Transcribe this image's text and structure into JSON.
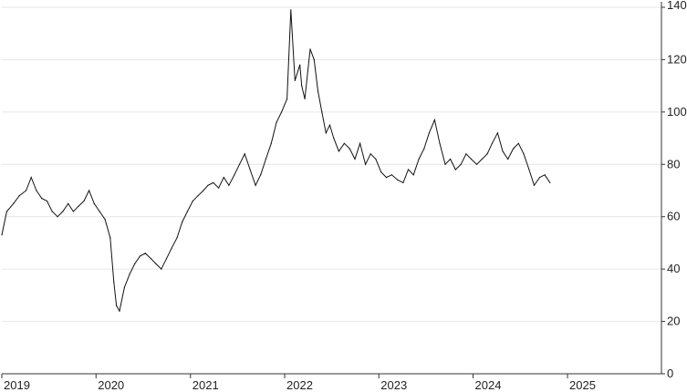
{
  "chart_data": {
    "type": "line",
    "title": "",
    "xlabel": "",
    "ylabel": "",
    "x_range": [
      "2019-01-01",
      "2025-12-31"
    ],
    "ylim": [
      0,
      140
    ],
    "y_ticks": [
      0,
      20,
      40,
      60,
      80,
      100,
      120,
      140
    ],
    "x_ticks": [
      {
        "date": "2019-01-01",
        "label": "2019"
      },
      {
        "date": "2020-01-01",
        "label": "2020"
      },
      {
        "date": "2021-01-01",
        "label": "2021"
      },
      {
        "date": "2022-01-01",
        "label": "2022"
      },
      {
        "date": "2023-01-01",
        "label": "2023"
      },
      {
        "date": "2024-01-01",
        "label": "2024"
      },
      {
        "date": "2025-01-01",
        "label": "2025"
      }
    ],
    "y_axis_position": "right",
    "grid": true,
    "legend": "none",
    "line_color": "#111111",
    "series": [
      {
        "x": [
          "2019-01-01",
          "2019-01-20",
          "2019-02-15",
          "2019-03-10",
          "2019-04-05",
          "2019-04-25",
          "2019-05-15",
          "2019-06-05",
          "2019-06-25",
          "2019-07-15",
          "2019-08-05",
          "2019-08-25",
          "2019-09-15",
          "2019-10-05",
          "2019-10-25",
          "2019-11-15",
          "2019-12-05",
          "2019-12-25",
          "2020-01-15",
          "2020-02-05",
          "2020-02-25",
          "2020-03-10",
          "2020-03-20",
          "2020-04-01",
          "2020-04-20",
          "2020-05-10",
          "2020-05-30",
          "2020-06-20",
          "2020-07-10",
          "2020-08-01",
          "2020-08-20",
          "2020-09-10",
          "2020-09-30",
          "2020-10-20",
          "2020-11-10",
          "2020-11-30",
          "2020-12-20",
          "2021-01-10",
          "2021-01-30",
          "2021-02-20",
          "2021-03-10",
          "2021-03-30",
          "2021-04-20",
          "2021-05-10",
          "2021-05-30",
          "2021-06-20",
          "2021-07-10",
          "2021-07-30",
          "2021-08-20",
          "2021-09-10",
          "2021-09-30",
          "2021-10-20",
          "2021-11-10",
          "2021-11-30",
          "2021-12-20",
          "2022-01-10",
          "2022-01-25",
          "2022-02-10",
          "2022-03-01",
          "2022-03-08",
          "2022-03-20",
          "2022-04-10",
          "2022-04-25",
          "2022-05-10",
          "2022-05-25",
          "2022-06-10",
          "2022-06-25",
          "2022-07-10",
          "2022-07-30",
          "2022-08-20",
          "2022-09-10",
          "2022-09-30",
          "2022-10-20",
          "2022-11-10",
          "2022-11-30",
          "2022-12-20",
          "2023-01-10",
          "2023-01-30",
          "2023-02-20",
          "2023-03-15",
          "2023-04-05",
          "2023-04-25",
          "2023-05-15",
          "2023-06-05",
          "2023-06-25",
          "2023-07-15",
          "2023-08-05",
          "2023-08-25",
          "2023-09-15",
          "2023-10-05",
          "2023-10-25",
          "2023-11-15",
          "2023-12-05",
          "2023-12-25",
          "2024-01-15",
          "2024-02-05",
          "2024-02-25",
          "2024-03-15",
          "2024-04-05",
          "2024-04-25",
          "2024-05-15",
          "2024-06-05",
          "2024-06-25",
          "2024-07-15",
          "2024-08-05",
          "2024-08-25",
          "2024-09-15",
          "2024-10-05",
          "2024-10-25"
        ],
        "y": [
          53,
          62,
          65,
          68,
          70,
          75,
          70,
          67,
          66,
          62,
          60,
          62,
          65,
          62,
          64,
          66,
          70,
          65,
          62,
          59,
          52,
          35,
          26,
          24,
          33,
          38,
          42,
          45,
          46,
          44,
          42,
          40,
          44,
          48,
          52,
          58,
          62,
          66,
          68,
          70,
          72,
          73,
          71,
          75,
          72,
          76,
          80,
          84,
          78,
          72,
          76,
          82,
          88,
          96,
          100,
          105,
          139,
          112,
          118,
          110,
          105,
          124,
          120,
          108,
          100,
          92,
          95,
          90,
          85,
          88,
          86,
          82,
          88,
          80,
          84,
          82,
          77,
          75,
          76,
          74,
          73,
          78,
          76,
          82,
          86,
          92,
          97,
          88,
          80,
          82,
          78,
          80,
          84,
          82,
          80,
          82,
          84,
          88,
          92,
          85,
          82,
          86,
          88,
          84,
          78,
          72,
          75,
          76,
          73
        ]
      }
    ]
  }
}
